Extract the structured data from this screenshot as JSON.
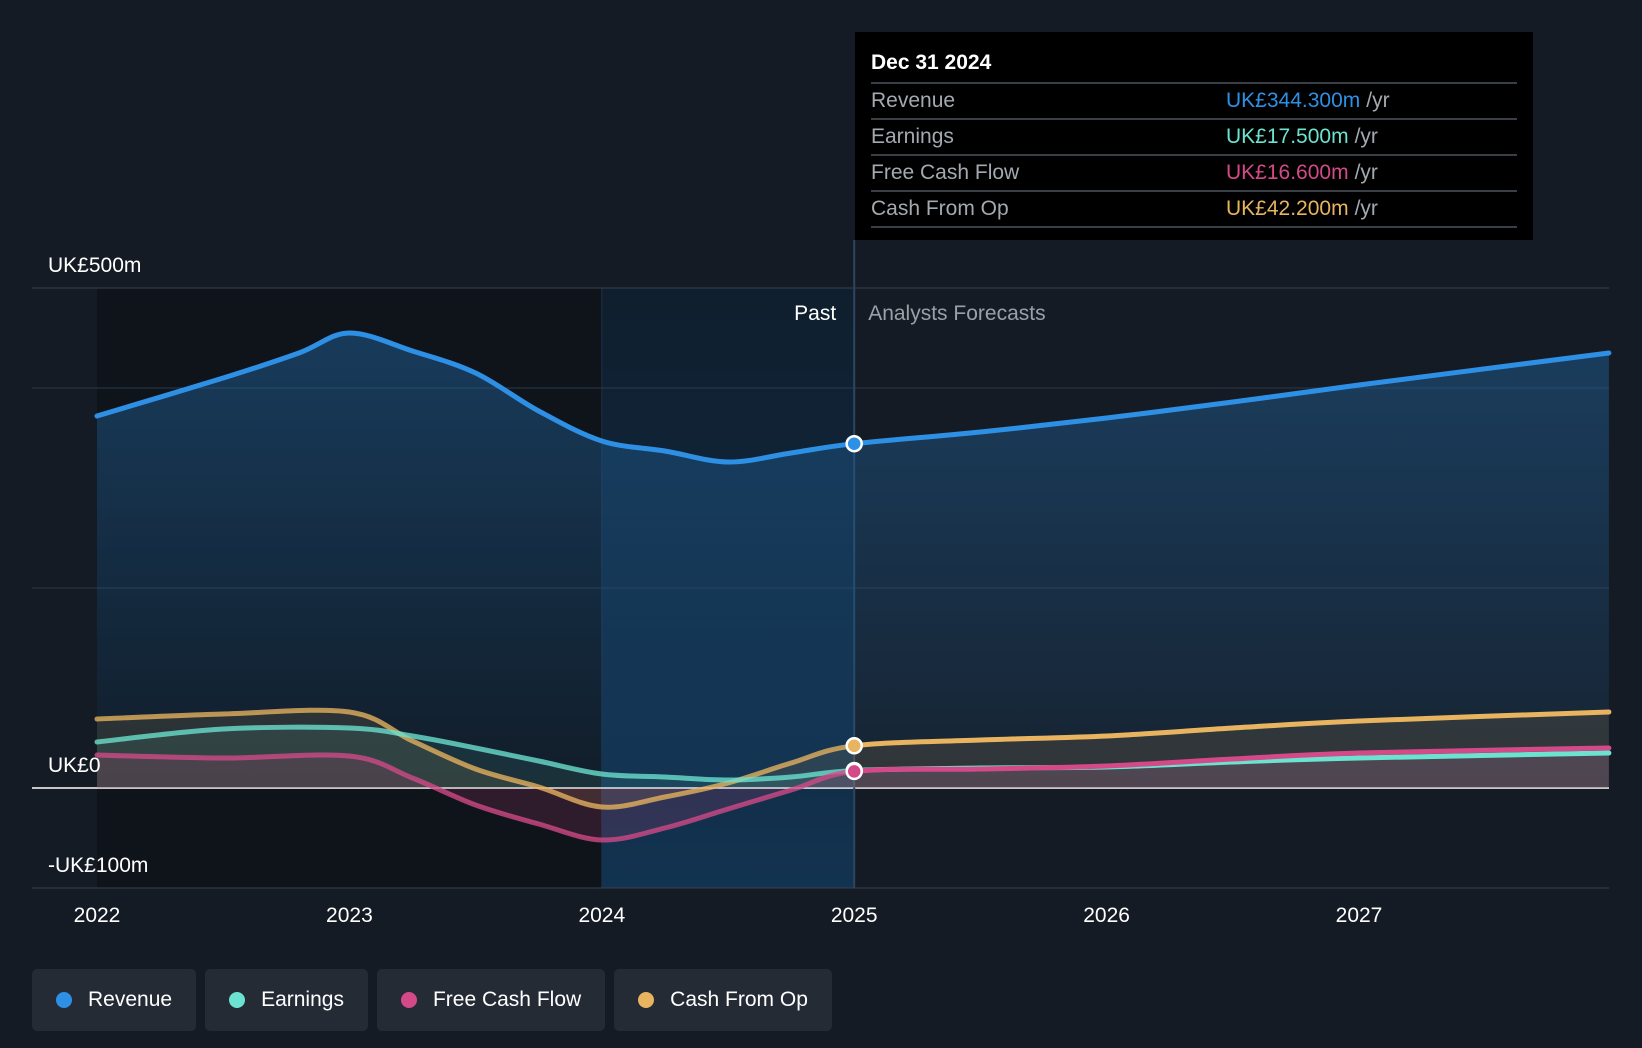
{
  "chart_data": {
    "type": "area",
    "title": "",
    "x_ticks": [
      "2022",
      "2023",
      "2024",
      "2025",
      "2026",
      "2027"
    ],
    "y_labels": [
      {
        "value": 500,
        "label": "UK£500m"
      },
      {
        "value": 0,
        "label": "UK£0"
      },
      {
        "value": -100,
        "label": "-UK£100m"
      }
    ],
    "ylim": [
      -100,
      500
    ],
    "xlim": [
      2021.75,
      2027.99
    ],
    "past_label": "Past",
    "forecast_label": "Analysts Forecasts",
    "divider_x": 2025.0,
    "highlight_start_x": 2024.0,
    "series": [
      {
        "name": "Revenue",
        "color": "#2e90e5",
        "points": [
          [
            2022.0,
            372
          ],
          [
            2022.5,
            410
          ],
          [
            2022.8,
            435
          ],
          [
            2023.0,
            455
          ],
          [
            2023.25,
            437
          ],
          [
            2023.5,
            415
          ],
          [
            2023.75,
            377
          ],
          [
            2024.0,
            347
          ],
          [
            2024.25,
            337
          ],
          [
            2024.5,
            326
          ],
          [
            2024.75,
            335
          ],
          [
            2025.0,
            344.3
          ],
          [
            2025.5,
            356
          ],
          [
            2026.0,
            370
          ],
          [
            2026.5,
            386
          ],
          [
            2027.0,
            403
          ],
          [
            2027.99,
            435
          ]
        ]
      },
      {
        "name": "Earnings",
        "color": "#6ce3d0",
        "points": [
          [
            2022.0,
            46
          ],
          [
            2022.5,
            59
          ],
          [
            2023.0,
            60
          ],
          [
            2023.25,
            52
          ],
          [
            2023.5,
            40
          ],
          [
            2023.75,
            27
          ],
          [
            2024.0,
            14
          ],
          [
            2024.25,
            11
          ],
          [
            2024.5,
            8
          ],
          [
            2024.75,
            11
          ],
          [
            2025.0,
            17.5
          ],
          [
            2025.5,
            20
          ],
          [
            2026.0,
            21
          ],
          [
            2026.5,
            26
          ],
          [
            2027.0,
            30
          ],
          [
            2027.99,
            35
          ]
        ]
      },
      {
        "name": "Free Cash Flow",
        "color": "#d44a88",
        "points": [
          [
            2022.0,
            33
          ],
          [
            2022.5,
            30
          ],
          [
            2023.0,
            32
          ],
          [
            2023.25,
            10
          ],
          [
            2023.5,
            -17
          ],
          [
            2023.75,
            -36
          ],
          [
            2024.0,
            -52
          ],
          [
            2024.25,
            -40
          ],
          [
            2024.5,
            -21
          ],
          [
            2024.75,
            -2
          ],
          [
            2025.0,
            16.6
          ],
          [
            2025.5,
            19
          ],
          [
            2026.0,
            22
          ],
          [
            2026.5,
            29
          ],
          [
            2027.0,
            35
          ],
          [
            2027.99,
            40
          ]
        ]
      },
      {
        "name": "Cash From Op",
        "color": "#e8b45f",
        "points": [
          [
            2022.0,
            69
          ],
          [
            2022.5,
            74
          ],
          [
            2023.0,
            76
          ],
          [
            2023.25,
            47
          ],
          [
            2023.5,
            19
          ],
          [
            2023.75,
            1
          ],
          [
            2024.0,
            -19
          ],
          [
            2024.25,
            -9
          ],
          [
            2024.5,
            5
          ],
          [
            2024.75,
            25
          ],
          [
            2025.0,
            42.2
          ],
          [
            2025.5,
            48
          ],
          [
            2026.0,
            52
          ],
          [
            2026.5,
            60
          ],
          [
            2027.0,
            67
          ],
          [
            2027.99,
            76
          ]
        ]
      }
    ],
    "markers_at": 2025.0
  },
  "tooltip": {
    "date": "Dec 31 2024",
    "unit": "/yr",
    "rows": [
      {
        "label": "Revenue",
        "value": "UK£344.300m",
        "color": "#2e90e5"
      },
      {
        "label": "Earnings",
        "value": "UK£17.500m",
        "color": "#6ce3d0"
      },
      {
        "label": "Free Cash Flow",
        "value": "UK£16.600m",
        "color": "#d44a88"
      },
      {
        "label": "Cash From Op",
        "value": "UK£42.200m",
        "color": "#e8b45f"
      }
    ]
  },
  "legend": [
    {
      "label": "Revenue",
      "color": "#2e90e5"
    },
    {
      "label": "Earnings",
      "color": "#6ce3d0"
    },
    {
      "label": "Free Cash Flow",
      "color": "#d44a88"
    },
    {
      "label": "Cash From Op",
      "color": "#e8b45f"
    }
  ]
}
